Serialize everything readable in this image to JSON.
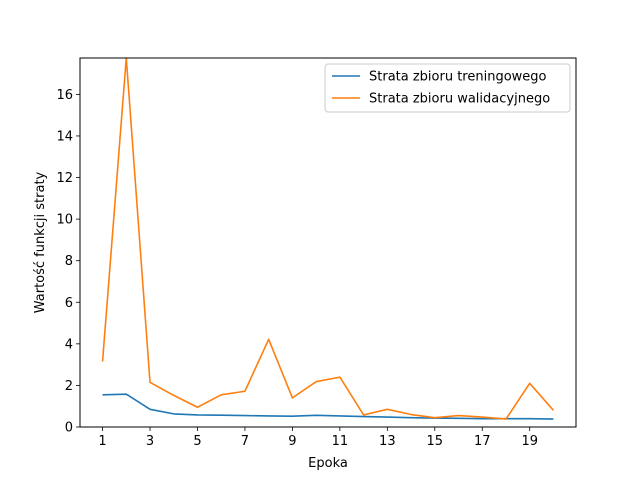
{
  "chart_data": {
    "type": "line",
    "title": "",
    "xlabel": "Epoka",
    "ylabel": "Wartość funkcji straty",
    "x": [
      1,
      2,
      3,
      4,
      5,
      6,
      7,
      8,
      9,
      10,
      11,
      12,
      13,
      14,
      15,
      16,
      17,
      18,
      19,
      20
    ],
    "x_ticks": [
      1,
      3,
      5,
      7,
      9,
      11,
      13,
      15,
      17,
      19
    ],
    "y_ticks": [
      0,
      2,
      4,
      6,
      8,
      10,
      12,
      14,
      16
    ],
    "xlim": [
      0.05,
      20.95
    ],
    "ylim": [
      0,
      17.75
    ],
    "grid": false,
    "legend_position": "top-right",
    "series": [
      {
        "name": "Strata zbioru treningowego",
        "color": "#1f77b4",
        "values": [
          1.55,
          1.58,
          0.85,
          0.63,
          0.58,
          0.57,
          0.55,
          0.53,
          0.52,
          0.56,
          0.53,
          0.5,
          0.48,
          0.45,
          0.43,
          0.42,
          0.4,
          0.4,
          0.4,
          0.38
        ]
      },
      {
        "name": "Strata zbioru walidacyjnego",
        "color": "#ff7f0e",
        "values": [
          3.15,
          17.75,
          2.15,
          1.52,
          0.95,
          1.55,
          1.72,
          4.22,
          1.4,
          2.18,
          2.4,
          0.58,
          0.85,
          0.6,
          0.45,
          0.55,
          0.48,
          0.38,
          2.1,
          0.8
        ]
      }
    ]
  }
}
